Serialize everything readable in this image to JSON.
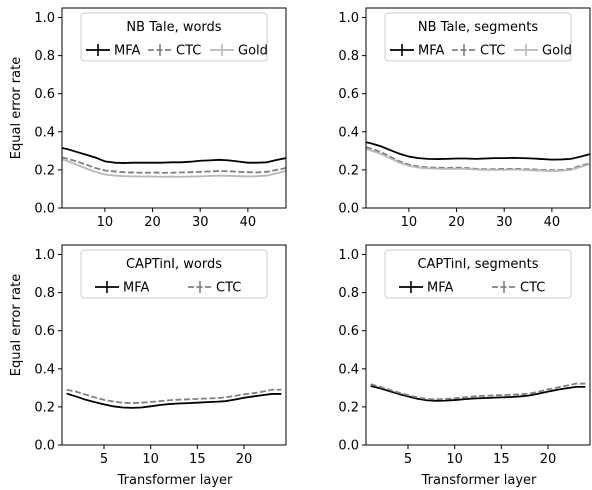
{
  "figure": {
    "shared_ylabel": "Equal error rate",
    "shared_xlabel": "Transformer layer"
  },
  "chart_data": [
    {
      "id": "nb-words",
      "type": "line",
      "title": "",
      "legend_title": "NB Tale, words",
      "legend_position": "top",
      "xlabel": "",
      "ylabel": "Equal error rate",
      "xlim": [
        1,
        48
      ],
      "ylim": [
        0,
        1.05
      ],
      "xticks": [
        10,
        20,
        30,
        40
      ],
      "yticks": [
        0.0,
        0.2,
        0.4,
        0.6,
        0.8,
        1.0
      ],
      "x": [
        1,
        2,
        4,
        6,
        8,
        10,
        12,
        14,
        16,
        18,
        20,
        22,
        24,
        26,
        28,
        30,
        32,
        34,
        36,
        38,
        40,
        42,
        44,
        46,
        48
      ],
      "series": [
        {
          "name": "MFA",
          "color": "#000000",
          "dash": "solid",
          "values": [
            0.315,
            0.31,
            0.295,
            0.28,
            0.265,
            0.245,
            0.238,
            0.236,
            0.238,
            0.238,
            0.238,
            0.238,
            0.24,
            0.24,
            0.243,
            0.248,
            0.25,
            0.253,
            0.25,
            0.244,
            0.238,
            0.238,
            0.24,
            0.252,
            0.262
          ]
        },
        {
          "name": "CTC",
          "color": "#808080",
          "dash": "dashed",
          "values": [
            0.265,
            0.26,
            0.245,
            0.228,
            0.21,
            0.197,
            0.192,
            0.188,
            0.186,
            0.185,
            0.186,
            0.185,
            0.185,
            0.187,
            0.188,
            0.19,
            0.192,
            0.194,
            0.193,
            0.19,
            0.188,
            0.187,
            0.19,
            0.2,
            0.21
          ]
        },
        {
          "name": "Gold",
          "color": "#b8b8b8",
          "dash": "solid",
          "values": [
            0.255,
            0.248,
            0.228,
            0.208,
            0.19,
            0.176,
            0.17,
            0.167,
            0.166,
            0.165,
            0.165,
            0.164,
            0.165,
            0.164,
            0.165,
            0.166,
            0.168,
            0.17,
            0.169,
            0.167,
            0.166,
            0.167,
            0.17,
            0.182,
            0.195
          ]
        }
      ]
    },
    {
      "id": "nb-segments",
      "type": "line",
      "title": "",
      "legend_title": "NB Tale, segments",
      "legend_position": "top",
      "xlabel": "",
      "ylabel": "",
      "xlim": [
        1,
        48
      ],
      "ylim": [
        0,
        1.05
      ],
      "xticks": [
        10,
        20,
        30,
        40
      ],
      "yticks": [
        0.0,
        0.2,
        0.4,
        0.6,
        0.8,
        1.0
      ],
      "x": [
        1,
        2,
        4,
        6,
        8,
        10,
        12,
        14,
        16,
        18,
        20,
        22,
        24,
        26,
        28,
        30,
        32,
        34,
        36,
        38,
        40,
        42,
        44,
        46,
        48
      ],
      "series": [
        {
          "name": "MFA",
          "color": "#000000",
          "dash": "solid",
          "values": [
            0.345,
            0.34,
            0.325,
            0.305,
            0.285,
            0.27,
            0.262,
            0.258,
            0.257,
            0.258,
            0.26,
            0.26,
            0.258,
            0.26,
            0.262,
            0.262,
            0.263,
            0.262,
            0.26,
            0.257,
            0.254,
            0.255,
            0.258,
            0.27,
            0.283
          ]
        },
        {
          "name": "CTC",
          "color": "#808080",
          "dash": "dashed",
          "values": [
            0.32,
            0.312,
            0.295,
            0.27,
            0.245,
            0.228,
            0.218,
            0.213,
            0.212,
            0.21,
            0.212,
            0.21,
            0.206,
            0.204,
            0.204,
            0.205,
            0.206,
            0.204,
            0.203,
            0.2,
            0.198,
            0.2,
            0.205,
            0.222,
            0.235
          ]
        },
        {
          "name": "Gold",
          "color": "#b8b8b8",
          "dash": "solid",
          "values": [
            0.31,
            0.302,
            0.285,
            0.262,
            0.238,
            0.222,
            0.212,
            0.208,
            0.206,
            0.205,
            0.206,
            0.205,
            0.202,
            0.2,
            0.2,
            0.2,
            0.202,
            0.2,
            0.198,
            0.196,
            0.194,
            0.196,
            0.2,
            0.216,
            0.23
          ]
        }
      ]
    },
    {
      "id": "capt-words",
      "type": "line",
      "title": "",
      "legend_title": "CAPTinI, words",
      "legend_position": "top",
      "xlabel": "Transformer layer",
      "ylabel": "Equal error rate",
      "xlim": [
        0.5,
        24.5
      ],
      "ylim": [
        0,
        1.05
      ],
      "xticks": [
        5,
        10,
        15,
        20
      ],
      "yticks": [
        0.0,
        0.2,
        0.4,
        0.6,
        0.8,
        1.0
      ],
      "x": [
        1,
        2,
        3,
        4,
        5,
        6,
        7,
        8,
        9,
        10,
        11,
        12,
        13,
        14,
        15,
        16,
        17,
        18,
        19,
        20,
        21,
        22,
        23,
        24
      ],
      "series": [
        {
          "name": "MFA",
          "color": "#000000",
          "dash": "solid",
          "values": [
            0.27,
            0.255,
            0.238,
            0.225,
            0.213,
            0.203,
            0.197,
            0.195,
            0.197,
            0.203,
            0.21,
            0.215,
            0.218,
            0.22,
            0.222,
            0.225,
            0.227,
            0.23,
            0.238,
            0.248,
            0.255,
            0.262,
            0.268,
            0.268
          ]
        },
        {
          "name": "CTC",
          "color": "#808080",
          "dash": "dashed",
          "values": [
            0.29,
            0.28,
            0.265,
            0.25,
            0.237,
            0.228,
            0.222,
            0.22,
            0.222,
            0.226,
            0.23,
            0.235,
            0.238,
            0.24,
            0.242,
            0.244,
            0.246,
            0.25,
            0.258,
            0.266,
            0.272,
            0.28,
            0.29,
            0.29
          ]
        }
      ]
    },
    {
      "id": "capt-segments",
      "type": "line",
      "title": "",
      "legend_title": "CAPTinI, segments",
      "legend_position": "top",
      "xlabel": "Transformer layer",
      "ylabel": "",
      "xlim": [
        0.5,
        24.5
      ],
      "ylim": [
        0,
        1.05
      ],
      "xticks": [
        5,
        10,
        15,
        20
      ],
      "yticks": [
        0.0,
        0.2,
        0.4,
        0.6,
        0.8,
        1.0
      ],
      "x": [
        1,
        2,
        3,
        4,
        5,
        6,
        7,
        8,
        9,
        10,
        11,
        12,
        13,
        14,
        15,
        16,
        17,
        18,
        19,
        20,
        21,
        22,
        23,
        24
      ],
      "series": [
        {
          "name": "MFA",
          "color": "#000000",
          "dash": "solid",
          "values": [
            0.31,
            0.298,
            0.283,
            0.268,
            0.255,
            0.243,
            0.235,
            0.232,
            0.233,
            0.236,
            0.24,
            0.244,
            0.246,
            0.248,
            0.25,
            0.252,
            0.255,
            0.26,
            0.27,
            0.28,
            0.29,
            0.298,
            0.305,
            0.305
          ]
        },
        {
          "name": "CTC",
          "color": "#808080",
          "dash": "dashed",
          "values": [
            0.32,
            0.305,
            0.29,
            0.275,
            0.262,
            0.25,
            0.242,
            0.24,
            0.242,
            0.245,
            0.25,
            0.255,
            0.258,
            0.26,
            0.262,
            0.264,
            0.266,
            0.27,
            0.28,
            0.292,
            0.302,
            0.312,
            0.322,
            0.322
          ]
        }
      ]
    }
  ]
}
